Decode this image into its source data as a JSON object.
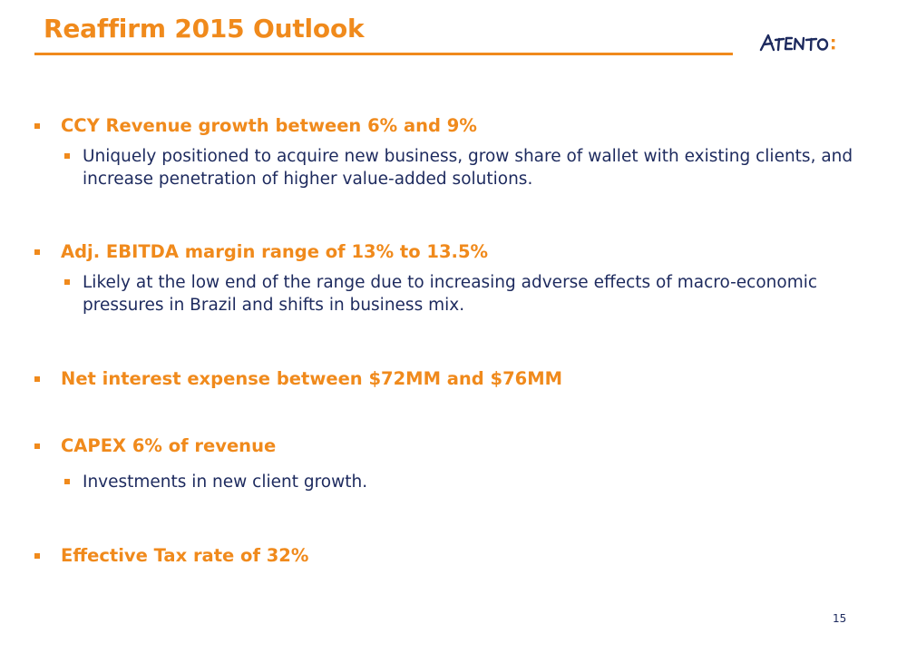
{
  "slide": {
    "title": "Reaffirm 2015 Outlook",
    "page_number": "15"
  },
  "logo": {
    "wordmark": "ATENTO",
    "colors": {
      "wordmark": "#1d2a5e",
      "colon": "#f08a1c"
    }
  },
  "colors": {
    "accent": "#f08a1c",
    "body_text": "#1d2a5e"
  },
  "bullets": [
    {
      "text": "CCY Revenue growth between 6% and 9%",
      "sub": "Uniquely positioned to acquire new business, grow share of wallet with existing clients, and increase penetration of higher value-added solutions."
    },
    {
      "text": "Adj. EBITDA margin range of 13% to 13.5%",
      "sub": "Likely at the low end of the range due to increasing adverse effects of macro-economic pressures in Brazil and shifts in business mix."
    },
    {
      "text": "Net interest expense between $72MM and $76MM"
    },
    {
      "text": "CAPEX 6% of revenue",
      "sub": "Investments in new client growth."
    },
    {
      "text": "Effective Tax rate of 32%"
    }
  ]
}
